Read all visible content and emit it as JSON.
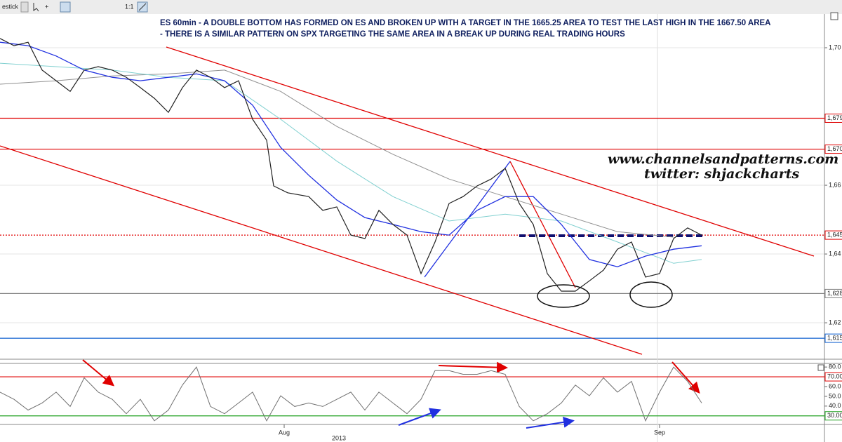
{
  "toolbar": {
    "chart_style": "estick",
    "zoom": "1:1"
  },
  "annotations": {
    "line1": "ES 60min - A DOUBLE BOTTOM HAS FORMED ON ES AND BROKEN UP WITH A TARGET IN THE 1665.25 AREA TO TEST THE LAST HIGH IN THE 1667.50 AREA",
    "line2": "- THERE IS A SIMILAR PATTERN ON SPX TARGETING THE SAME AREA IN A BREAK UP DURING REAL TRADING HOURS",
    "website": "www.channelsandpatterns.com",
    "twitter": "twitter: shjackcharts",
    "year_label": "2013"
  },
  "chart_data": [
    {
      "type": "line",
      "xlim": [
        0,
        235
      ],
      "ylim": [
        1609.4,
        1709.8
      ],
      "grid": true,
      "yticks": [
        {
          "value": 1700,
          "label": "1,70"
        },
        {
          "value": 1660,
          "label": "1,66"
        },
        {
          "value": 1640,
          "label": "1,64"
        },
        {
          "value": 1620,
          "label": "1,62"
        }
      ],
      "levels": [
        {
          "value": 1679.5,
          "label": "1,679",
          "color": "#e00000",
          "dash": false
        },
        {
          "value": 1670.5,
          "label": "1,670",
          "color": "#e00000",
          "dash": false
        },
        {
          "value": 1645.5,
          "label": "1,645",
          "color": "#e00000",
          "dash": true
        },
        {
          "value": 1628.5,
          "label": "1,628",
          "color": "#808080",
          "dash": false
        },
        {
          "value": 1615.5,
          "label": "1,615",
          "color": "#1060d0",
          "dash": false
        }
      ],
      "series": [
        {
          "color": "#909090",
          "width": 1,
          "x": [
            0,
            16,
            32,
            48,
            64,
            80,
            96,
            112,
            128,
            144,
            160,
            176,
            192
          ],
          "values": [
            1689.4,
            1690.4,
            1691.8,
            1692.4,
            1693.5,
            1687.3,
            1677.1,
            1669.0,
            1661.8,
            1656.7,
            1651.6,
            1646.5,
            1644.9
          ]
        },
        {
          "color": "#80d0d0",
          "width": 1,
          "x": [
            0,
            16,
            32,
            48,
            64,
            80,
            96,
            112,
            128,
            144,
            160,
            176,
            192,
            200
          ],
          "values": [
            1695.5,
            1694.5,
            1693.5,
            1691.4,
            1690.4,
            1679.2,
            1667.0,
            1656.7,
            1649.6,
            1651.6,
            1649.6,
            1643.5,
            1637.3,
            1638.4
          ]
        },
        {
          "color": "#2030e0",
          "width": 1.3,
          "x": [
            0,
            8,
            16,
            24,
            32,
            40,
            48,
            56,
            64,
            72,
            80,
            88,
            96,
            104,
            112,
            120,
            128,
            136,
            144,
            152,
            160,
            168,
            176,
            184,
            192,
            200
          ],
          "values": [
            1701.6,
            1700.6,
            1697.6,
            1693.5,
            1691.4,
            1690.4,
            1691.4,
            1692.4,
            1690.4,
            1683.3,
            1671.0,
            1662.9,
            1655.7,
            1650.6,
            1648.6,
            1646.5,
            1645.5,
            1652.7,
            1656.7,
            1656.7,
            1648.6,
            1638.4,
            1636.3,
            1639.4,
            1641.4,
            1642.4
          ]
        },
        {
          "color": "#202020",
          "width": 1.2,
          "x": [
            0,
            4,
            8,
            12,
            16,
            20,
            24,
            28,
            32,
            36,
            40,
            44,
            48,
            52,
            56,
            60,
            64,
            68,
            72,
            76,
            78,
            82,
            88,
            92,
            96,
            100,
            104,
            108,
            112,
            116,
            120,
            124,
            128,
            132,
            136,
            140,
            144,
            148,
            152,
            156,
            160,
            164,
            168,
            172,
            176,
            180,
            184,
            188,
            192,
            196,
            200
          ],
          "values": [
            1702.7,
            1700.6,
            1701.6,
            1693.5,
            1690.4,
            1687.3,
            1693.5,
            1694.5,
            1693.5,
            1691.4,
            1688.4,
            1685.3,
            1681.2,
            1688.4,
            1693.5,
            1691.4,
            1688.4,
            1690.4,
            1679.2,
            1673.1,
            1659.8,
            1657.8,
            1656.7,
            1652.7,
            1653.7,
            1645.5,
            1644.5,
            1652.7,
            1648.6,
            1645.5,
            1634.3,
            1643.5,
            1654.7,
            1656.7,
            1659.8,
            1661.8,
            1664.9,
            1654.7,
            1648.6,
            1634.3,
            1629.2,
            1629.2,
            1632.2,
            1635.3,
            1641.4,
            1643.5,
            1633.3,
            1634.3,
            1644.5,
            1647.6,
            1645.5
          ]
        }
      ]
    },
    {
      "type": "line",
      "xlim": [
        0,
        235
      ],
      "ylim": [
        21.2,
        83.7
      ],
      "yticks": [
        {
          "value": 80,
          "label": "80.0"
        },
        {
          "value": 60,
          "label": "60.0"
        },
        {
          "value": 50,
          "label": "50.0"
        },
        {
          "value": 40,
          "label": "40.0"
        }
      ],
      "xticks": [
        {
          "value": 81,
          "label": "Aug"
        },
        {
          "value": 188,
          "label": "Sep"
        }
      ],
      "levels": [
        {
          "value": 70,
          "label": "70.00",
          "color": "#e00000",
          "dash": false
        },
        {
          "value": 30,
          "label": "30.00",
          "color": "#20a020",
          "dash": false
        }
      ],
      "series": [
        {
          "color": "#707070",
          "width": 1,
          "x": [
            0,
            4,
            8,
            12,
            16,
            20,
            24,
            28,
            32,
            36,
            40,
            44,
            48,
            52,
            56,
            60,
            64,
            68,
            72,
            76,
            80,
            84,
            88,
            92,
            96,
            100,
            104,
            108,
            112,
            116,
            120,
            124,
            128,
            132,
            136,
            140,
            144,
            148,
            152,
            156,
            160,
            164,
            168,
            172,
            176,
            180,
            184,
            188,
            192,
            196,
            200
          ],
          "values": [
            54.3,
            46.9,
            35.9,
            43.2,
            54.3,
            39.6,
            69.0,
            54.3,
            46.9,
            32.2,
            46.9,
            24.9,
            35.9,
            61.6,
            80.0,
            39.6,
            32.2,
            43.2,
            54.3,
            24.9,
            50.6,
            39.6,
            43.2,
            39.6,
            46.9,
            54.3,
            35.9,
            54.3,
            43.2,
            32.2,
            46.9,
            76.3,
            76.3,
            72.6,
            72.6,
            76.3,
            72.6,
            39.6,
            24.9,
            32.2,
            43.2,
            61.6,
            50.6,
            69.0,
            54.3,
            65.3,
            24.9,
            54.3,
            80.0,
            65.3,
            43.2
          ]
        }
      ]
    }
  ]
}
